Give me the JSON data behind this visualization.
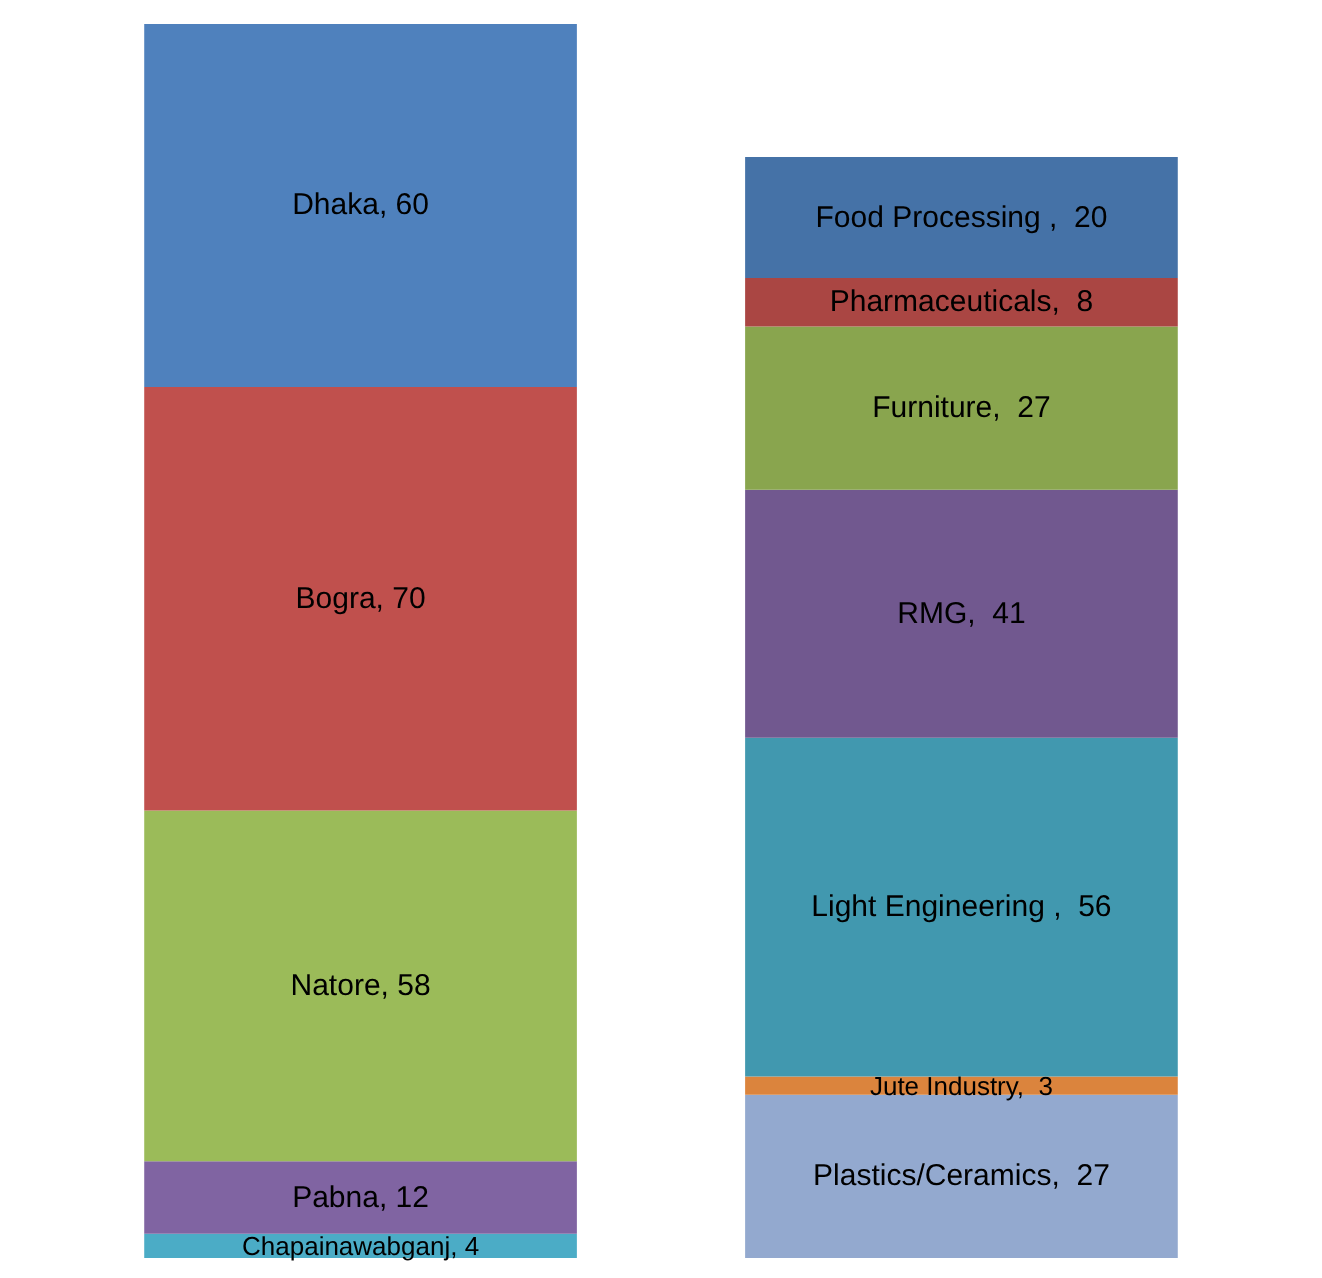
{
  "chart_data": {
    "type": "bar",
    "stacked": true,
    "categories": [
      null,
      null
    ],
    "tick_labels": false,
    "series": [
      {
        "color": "#4bacc6",
        "values": [
          4,
          null
        ],
        "value_labels": [
          "Chapainawabganj, 4",
          null
        ]
      },
      {
        "color": "#8064a2",
        "values": [
          12,
          null
        ],
        "value_labels": [
          "Pabna, 12",
          null
        ]
      },
      {
        "color": "#9bbb59",
        "values": [
          58,
          null
        ],
        "value_labels": [
          "Natore, 58",
          null
        ]
      },
      {
        "color": "#c0504d",
        "values": [
          70,
          null
        ],
        "value_labels": [
          "Bogra, 70",
          null
        ]
      },
      {
        "color": "#4f81bd",
        "values": [
          60,
          null
        ],
        "value_labels": [
          "Dhaka, 60",
          null
        ]
      },
      {
        "color": "#93a9cf",
        "values": [
          null,
          27
        ],
        "value_labels": [
          null,
          "Plastics/Ceramics,  27"
        ]
      },
      {
        "color": "#db843d",
        "values": [
          null,
          3
        ],
        "value_labels": [
          null,
          "Jute Industry,  3"
        ]
      },
      {
        "color": "#4198af",
        "values": [
          null,
          56
        ],
        "value_labels": [
          null,
          "Light Engineering ,  56"
        ]
      },
      {
        "color": "#71588f",
        "values": [
          null,
          41
        ],
        "value_labels": [
          null,
          "RMG,  41"
        ]
      },
      {
        "color": "#89a54e",
        "values": [
          null,
          27
        ],
        "value_labels": [
          null,
          "Furniture,  27"
        ]
      },
      {
        "color": "#aa4643",
        "values": [
          null,
          8
        ],
        "value_labels": [
          null,
          "Pharmaceuticals,  8"
        ]
      },
      {
        "color": "#4572a7",
        "values": [
          null,
          20
        ],
        "value_labels": [
          null,
          "Food Processing ,  20"
        ]
      }
    ]
  }
}
